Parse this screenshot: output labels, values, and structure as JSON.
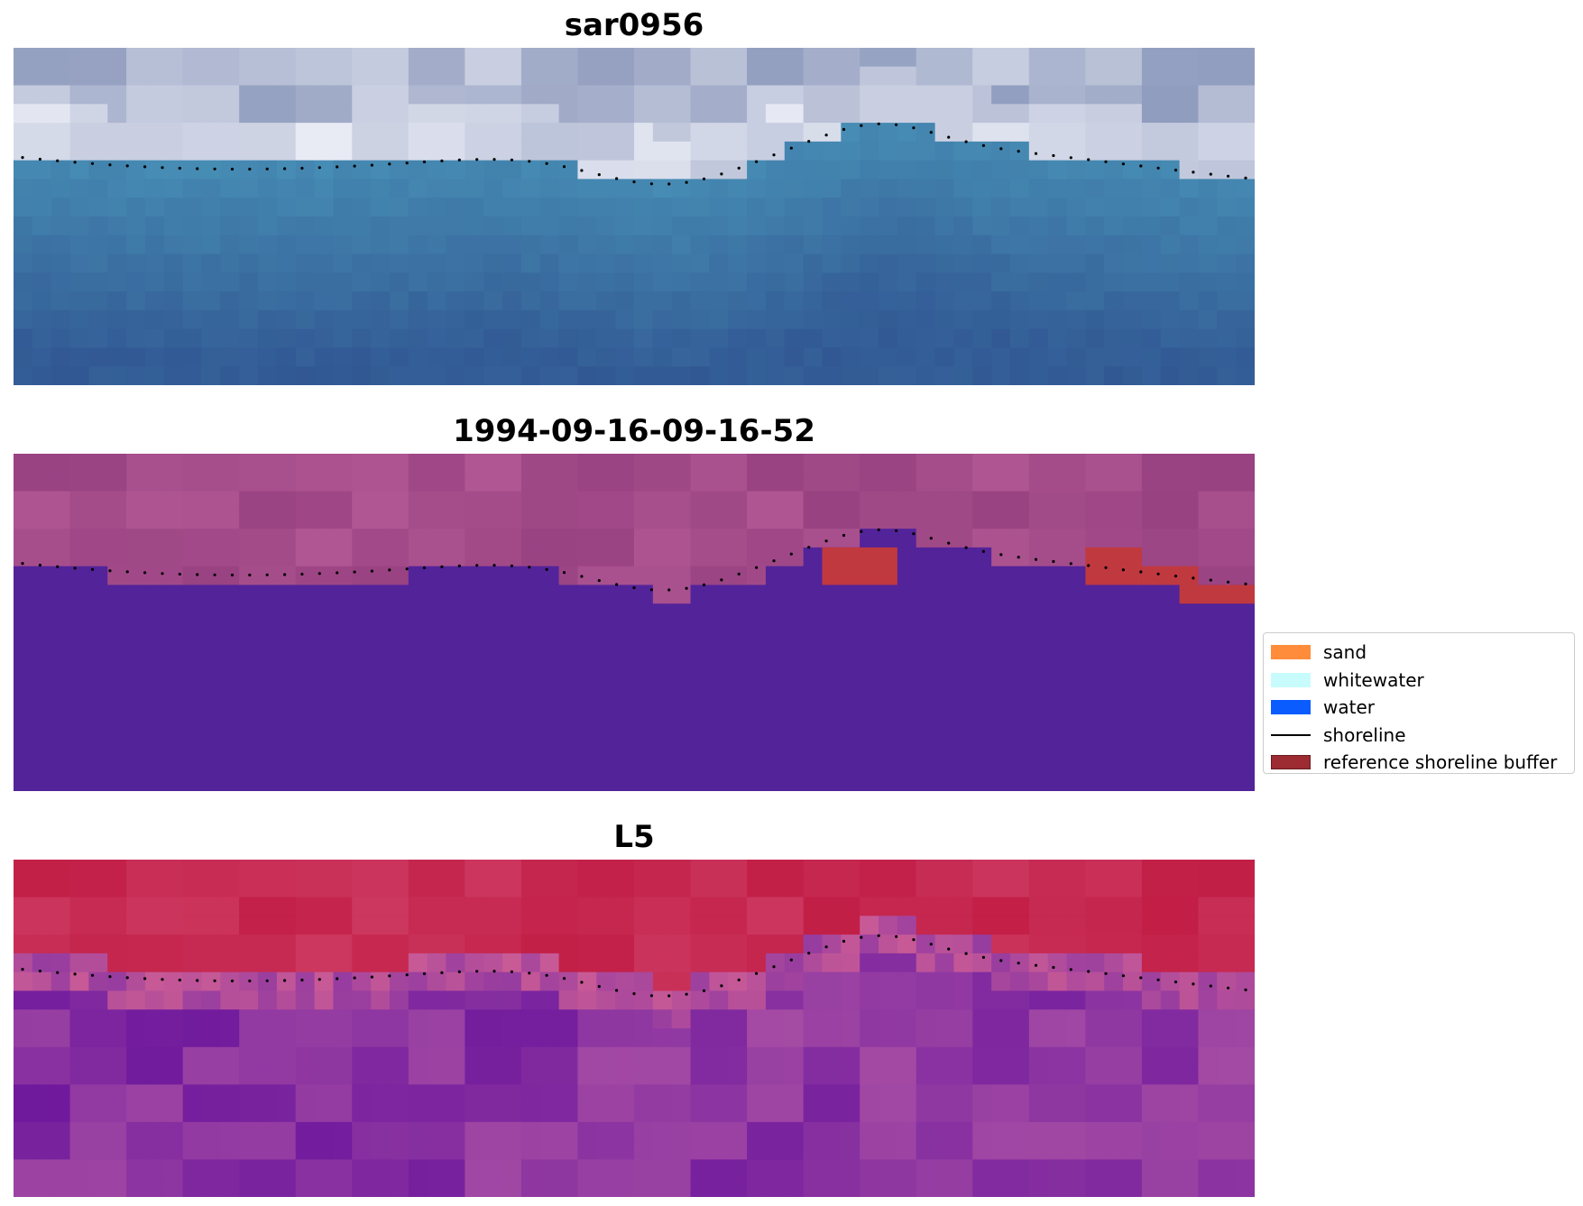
{
  "panels": [
    {
      "title": "sar0956",
      "kind": "rgb"
    },
    {
      "title": "1994-09-16-09-16-52",
      "kind": "classified"
    },
    {
      "title": "L5",
      "kind": "mndwi"
    }
  ],
  "legend": {
    "items": [
      {
        "label": "sand",
        "color": "#ff8c3a",
        "type": "patch"
      },
      {
        "label": "whitewater",
        "color": "#c8fcfc",
        "type": "patch"
      },
      {
        "label": "water",
        "color": "#0a5cff",
        "type": "patch"
      },
      {
        "label": "shoreline",
        "color": "#000000",
        "type": "line"
      },
      {
        "label": "reference shoreline buffer",
        "color": "#9c2b32",
        "type": "patch"
      }
    ]
  },
  "colors": {
    "classified_water": "#53239a",
    "classified_land": "#a8508c",
    "buffer": "#c0393f"
  }
}
